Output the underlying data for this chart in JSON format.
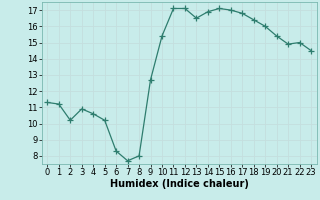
{
  "x": [
    0,
    1,
    2,
    3,
    4,
    5,
    6,
    7,
    8,
    9,
    10,
    11,
    12,
    13,
    14,
    15,
    16,
    17,
    18,
    19,
    20,
    21,
    22,
    23
  ],
  "y": [
    11.3,
    11.2,
    10.2,
    10.9,
    10.6,
    10.2,
    8.3,
    7.7,
    8.0,
    12.7,
    15.4,
    17.1,
    17.1,
    16.5,
    16.9,
    17.1,
    17.0,
    16.8,
    16.4,
    16.0,
    15.4,
    14.9,
    15.0,
    14.5
  ],
  "xlabel": "Humidex (Indice chaleur)",
  "ylim": [
    7.5,
    17.5
  ],
  "xlim": [
    -0.5,
    23.5
  ],
  "yticks": [
    8,
    9,
    10,
    11,
    12,
    13,
    14,
    15,
    16,
    17
  ],
  "xticks": [
    0,
    1,
    2,
    3,
    4,
    5,
    6,
    7,
    8,
    9,
    10,
    11,
    12,
    13,
    14,
    15,
    16,
    17,
    18,
    19,
    20,
    21,
    22,
    23
  ],
  "line_color": "#2e7d6e",
  "bg_color": "#c8ecea",
  "grid_color": "#c4dede",
  "marker": "+",
  "marker_size": 4,
  "tick_fontsize": 6,
  "xlabel_fontsize": 7
}
